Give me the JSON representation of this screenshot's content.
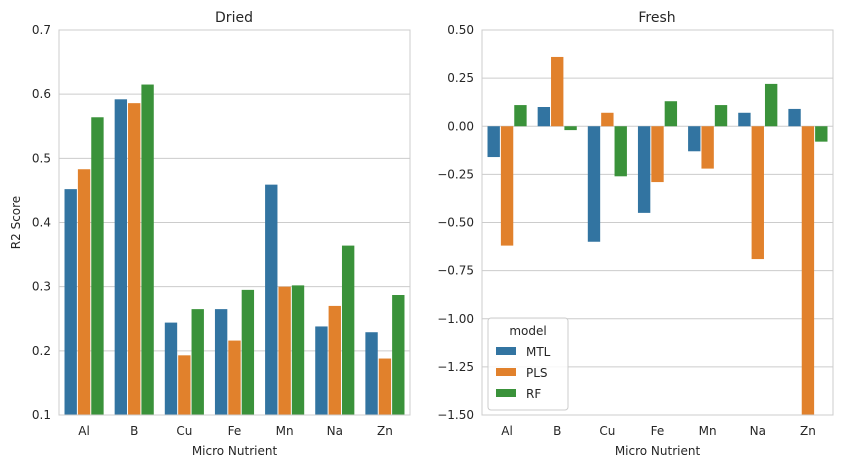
{
  "chart_data": [
    {
      "type": "bar",
      "title": "Dried",
      "xlabel": "Micro Nutrient",
      "ylabel": "R2 Score",
      "ylim": [
        0.1,
        0.7
      ],
      "yticks": [
        "0.1",
        "0.2",
        "0.3",
        "0.4",
        "0.5",
        "0.6",
        "0.7"
      ],
      "grid": "y",
      "categories": [
        "Al",
        "B",
        "Cu",
        "Fe",
        "Mn",
        "Na",
        "Zn"
      ],
      "series": [
        {
          "name": "MTL",
          "color": "#3274a1",
          "values": [
            0.452,
            0.592,
            0.244,
            0.265,
            0.459,
            0.238,
            0.229
          ]
        },
        {
          "name": "PLS",
          "color": "#e1812c",
          "values": [
            0.483,
            0.586,
            0.193,
            0.216,
            0.3,
            0.27,
            0.188
          ]
        },
        {
          "name": "RF",
          "color": "#3a923a",
          "values": [
            0.564,
            0.615,
            0.265,
            0.295,
            0.302,
            0.364,
            0.287
          ]
        }
      ]
    },
    {
      "type": "bar",
      "title": "Fresh",
      "xlabel": "Micro Nutrient",
      "ylabel": "",
      "ylim": [
        -1.5,
        0.5
      ],
      "yticks": [
        "−1.50",
        "−1.25",
        "−1.00",
        "−0.75",
        "−0.50",
        "−0.25",
        "0.00",
        "0.25",
        "0.50"
      ],
      "grid": "y",
      "legend": {
        "title": "model",
        "position": "lower-left"
      },
      "categories": [
        "Al",
        "B",
        "Cu",
        "Fe",
        "Mn",
        "Na",
        "Zn"
      ],
      "series": [
        {
          "name": "MTL",
          "color": "#3274a1",
          "values": [
            -0.16,
            0.1,
            -0.6,
            -0.45,
            -0.13,
            0.07,
            0.09
          ]
        },
        {
          "name": "PLS",
          "color": "#e1812c",
          "values": [
            -0.62,
            0.36,
            0.07,
            -0.29,
            -0.22,
            -0.69,
            -1.5
          ]
        },
        {
          "name": "RF",
          "color": "#3a923a",
          "values": [
            0.11,
            -0.02,
            -0.26,
            0.13,
            0.11,
            0.22,
            -0.08
          ]
        }
      ]
    }
  ]
}
